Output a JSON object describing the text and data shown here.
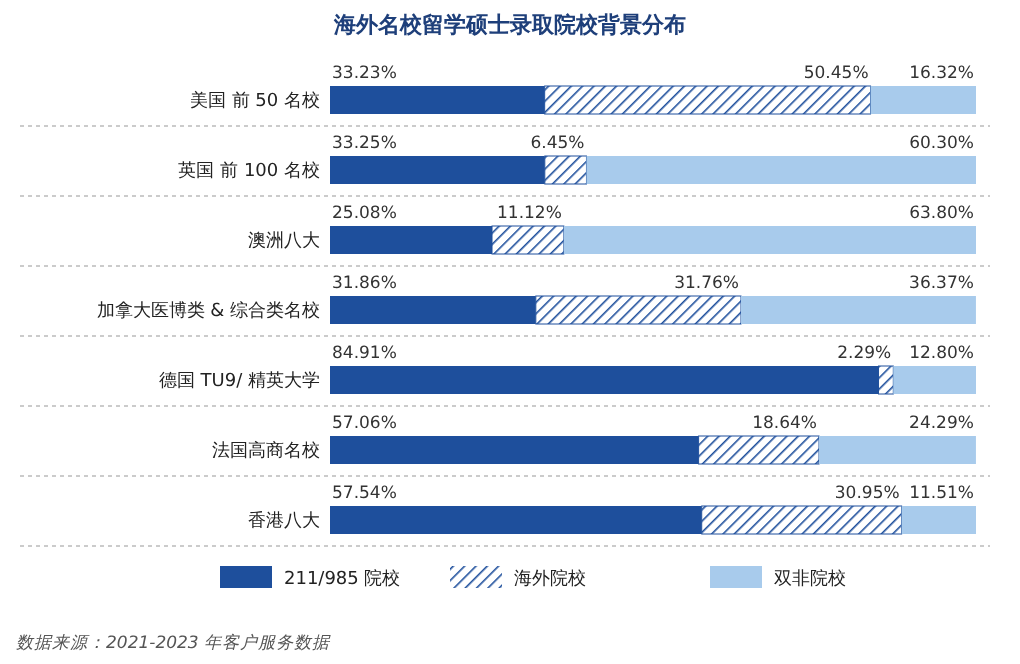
{
  "chart_data": {
    "type": "bar",
    "orientation": "horizontal",
    "stacked": true,
    "title": "海外名校留学硕士录取院校背景分布",
    "categories": [
      "美国 前 50 名校",
      "英国 前 100 名校",
      "澳洲八大",
      "加拿大医博类 & 综合类名校",
      "德国 TU9/ 精英大学",
      "法国高商名校",
      "香港八大"
    ],
    "xlim": [
      0,
      100
    ],
    "tick_labels": "y",
    "legend": "bottom",
    "series": [
      {
        "name": "211/985 院校",
        "color": "#1e4f9c",
        "values": [
          33.23,
          33.25,
          25.08,
          31.86,
          84.91,
          57.06,
          57.54
        ],
        "value_labels": [
          "33.23%",
          "33.25%",
          "25.08%",
          "31.86%",
          "84.91%",
          "57.06%",
          "57.54%"
        ]
      },
      {
        "name": "海外院校",
        "color": "#1e4f9c",
        "values": [
          50.45,
          6.45,
          11.12,
          31.76,
          2.29,
          18.64,
          30.95
        ],
        "value_labels": [
          "50.45%",
          "6.45%",
          "11.12%",
          "31.76%",
          "2.29%",
          "18.64%",
          "30.95%"
        ]
      },
      {
        "name": "双非院校",
        "color": "#a8cbec",
        "values": [
          16.32,
          60.3,
          63.8,
          36.37,
          12.8,
          24.29,
          11.51
        ],
        "value_labels": [
          "16.32%",
          "60.30%",
          "63.80%",
          "36.37%",
          "12.80%",
          "24.29%",
          "11.51%"
        ]
      }
    ],
    "annotations": [
      "数据来源：2021-2023 年客户服务数据"
    ]
  }
}
